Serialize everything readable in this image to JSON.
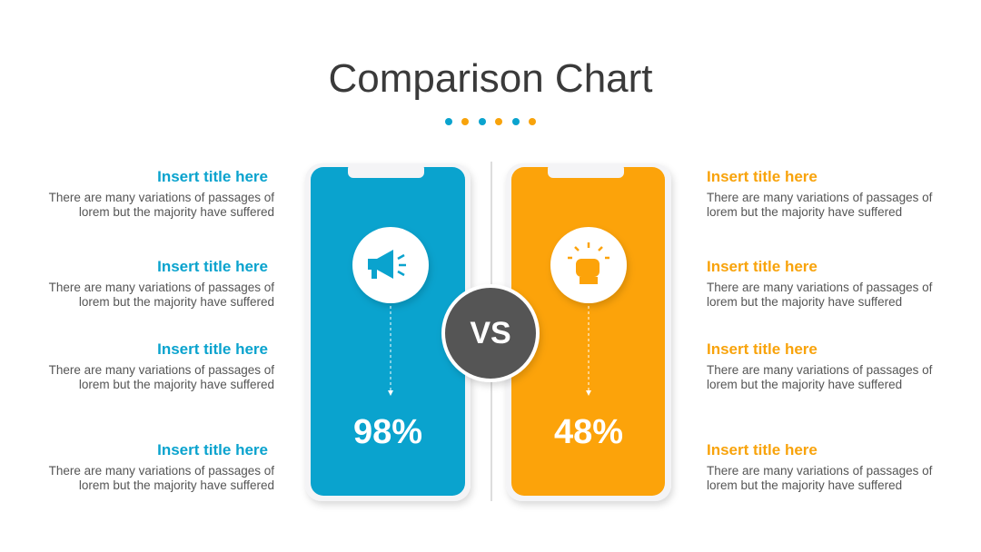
{
  "title": "Comparison Chart",
  "left_items": [
    {
      "title": "Insert title here",
      "lines": [
        "There are many variations of passages of",
        "lorem but the majority have suffered"
      ]
    },
    {
      "title": "Insert title here",
      "lines": [
        "There are many variations of passages of",
        "lorem but the majority have suffered"
      ]
    },
    {
      "title": "Insert title here",
      "lines": [
        "There are many variations of passages of",
        "lorem but the majority have suffered"
      ]
    },
    {
      "title": "Insert title here",
      "lines": [
        "There are many variations of passages of",
        "lorem but the majority have suffered"
      ]
    }
  ],
  "right_items": [
    {
      "title": "Insert title here",
      "lines": [
        "There are many variations of passages of",
        "lorem but the majority have suffered"
      ]
    },
    {
      "title": "Insert title here",
      "lines": [
        "There are many variations of passages of",
        "lorem but the majority have suffered"
      ]
    },
    {
      "title": "Insert title here",
      "lines": [
        "There are many variations of passages of",
        "lorem but the majority have suffered"
      ]
    },
    {
      "title": "Insert title here",
      "lines": [
        "There are many variations of passages of",
        "lorem but the majority have suffered"
      ]
    }
  ],
  "left_panel": {
    "value": "98%"
  },
  "right_panel": {
    "value": "48%"
  },
  "vs": "VS"
}
